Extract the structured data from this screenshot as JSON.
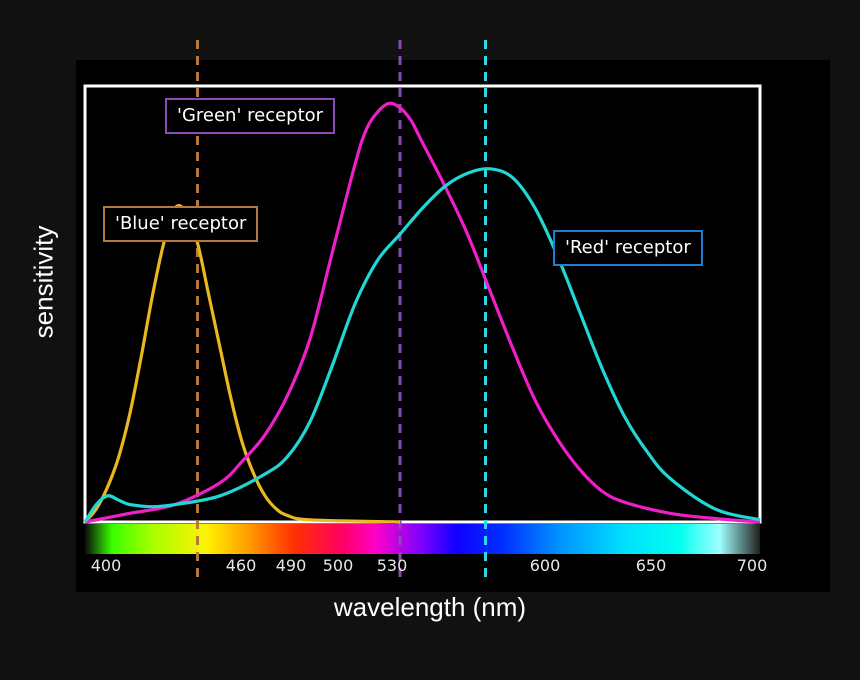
{
  "chart_data": {
    "type": "line",
    "xlabel": "wavelength (nm)",
    "ylabel": "sensitivity",
    "xlim": [
      400,
      700
    ],
    "x_ticks": [
      400,
      460,
      490,
      500,
      530,
      600,
      650,
      700
    ],
    "grid": false,
    "series": [
      {
        "name": "'Blue' receptor",
        "color": "#e8b81e",
        "points": [
          [
            400,
            0.0
          ],
          [
            405,
            0.03
          ],
          [
            410,
            0.08
          ],
          [
            415,
            0.15
          ],
          [
            420,
            0.25
          ],
          [
            425,
            0.38
          ],
          [
            430,
            0.52
          ],
          [
            435,
            0.64
          ],
          [
            440,
            0.72
          ],
          [
            445,
            0.71
          ],
          [
            450,
            0.64
          ],
          [
            455,
            0.52
          ],
          [
            460,
            0.4
          ],
          [
            465,
            0.28
          ],
          [
            470,
            0.18
          ],
          [
            475,
            0.11
          ],
          [
            480,
            0.06
          ],
          [
            485,
            0.03
          ],
          [
            490,
            0.015
          ],
          [
            500,
            0.005
          ],
          [
            540,
            0.0
          ]
        ]
      },
      {
        "name": "'Green' receptor",
        "color": "#ee1ec8",
        "points": [
          [
            400,
            0.0
          ],
          [
            420,
            0.02
          ],
          [
            440,
            0.04
          ],
          [
            460,
            0.09
          ],
          [
            470,
            0.14
          ],
          [
            480,
            0.2
          ],
          [
            490,
            0.29
          ],
          [
            500,
            0.42
          ],
          [
            510,
            0.62
          ],
          [
            520,
            0.82
          ],
          [
            525,
            0.9
          ],
          [
            530,
            0.94
          ],
          [
            535,
            0.96
          ],
          [
            540,
            0.95
          ],
          [
            545,
            0.92
          ],
          [
            550,
            0.87
          ],
          [
            560,
            0.77
          ],
          [
            570,
            0.66
          ],
          [
            580,
            0.53
          ],
          [
            590,
            0.4
          ],
          [
            600,
            0.28
          ],
          [
            610,
            0.19
          ],
          [
            620,
            0.12
          ],
          [
            630,
            0.07
          ],
          [
            640,
            0.045
          ],
          [
            660,
            0.02
          ],
          [
            680,
            0.008
          ],
          [
            700,
            0.0
          ]
        ]
      },
      {
        "name": "'Red' receptor",
        "color": "#22d6d6",
        "points": [
          [
            400,
            0.0
          ],
          [
            405,
            0.04
          ],
          [
            410,
            0.06
          ],
          [
            415,
            0.05
          ],
          [
            420,
            0.04
          ],
          [
            430,
            0.035
          ],
          [
            440,
            0.04
          ],
          [
            460,
            0.06
          ],
          [
            480,
            0.11
          ],
          [
            490,
            0.15
          ],
          [
            500,
            0.23
          ],
          [
            510,
            0.36
          ],
          [
            520,
            0.5
          ],
          [
            530,
            0.6
          ],
          [
            540,
            0.66
          ],
          [
            550,
            0.72
          ],
          [
            560,
            0.77
          ],
          [
            570,
            0.8
          ],
          [
            580,
            0.81
          ],
          [
            590,
            0.79
          ],
          [
            600,
            0.72
          ],
          [
            610,
            0.61
          ],
          [
            620,
            0.48
          ],
          [
            630,
            0.35
          ],
          [
            640,
            0.24
          ],
          [
            650,
            0.16
          ],
          [
            660,
            0.1
          ],
          [
            680,
            0.03
          ],
          [
            700,
            0.005
          ]
        ]
      }
    ],
    "reference_lines": [
      {
        "x": 450,
        "color": "#b5773a"
      },
      {
        "x": 540,
        "color": "#8a49b4"
      },
      {
        "x": 578,
        "color": "#2fd8e8"
      }
    ],
    "annotations": [
      {
        "text": "'Blue' receptor",
        "border": "#b5773a"
      },
      {
        "text": "'Green' receptor",
        "border": "#8a49b4"
      },
      {
        "text": "'Red' receptor",
        "border": "#1f7fd0"
      }
    ]
  }
}
